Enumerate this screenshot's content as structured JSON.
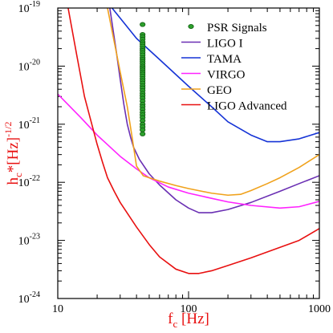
{
  "chart_data": {
    "type": "line",
    "title": "",
    "xlabel_main": "f",
    "xlabel_sub": "c",
    "xlabel_unit": " [Hz]",
    "ylabel_main": "h",
    "ylabel_sub": "c",
    "ylabel_unit": "*[Hz]",
    "ylabel_exp": "-1/2",
    "xscale": "log",
    "yscale": "log",
    "xlim": [
      10,
      1000
    ],
    "ylim": [
      1e-24,
      1e-19
    ],
    "grid": false,
    "legend_position": "top-right",
    "x_ticks": [
      {
        "value": 10,
        "label": "10"
      },
      {
        "value": 100,
        "label": "100"
      },
      {
        "value": 1000,
        "label": "1000"
      }
    ],
    "y_ticks": [
      {
        "value": 1e-19,
        "base": "10",
        "exp": "-19"
      },
      {
        "value": 1e-20,
        "base": "10",
        "exp": "-20"
      },
      {
        "value": 1e-21,
        "base": "10",
        "exp": "-21"
      },
      {
        "value": 1e-22,
        "base": "10",
        "exp": "-22"
      },
      {
        "value": 1e-23,
        "base": "10",
        "exp": "-23"
      },
      {
        "value": 1e-24,
        "base": "10",
        "exp": "-24"
      }
    ],
    "series": [
      {
        "name": "LIGO I",
        "kind": "line",
        "color": "#6a2fb3",
        "x": [
          25,
          28,
          30,
          32,
          34,
          36,
          38,
          42,
          50,
          60,
          80,
          100,
          120,
          150,
          200,
          300,
          500,
          700,
          1000
        ],
        "y": [
          1e-19,
          1.8e-20,
          6e-21,
          2.2e-21,
          1e-21,
          6e-22,
          4e-22,
          2.5e-22,
          1.4e-22,
          9e-23,
          5e-23,
          3.6e-23,
          3e-23,
          3e-23,
          3.4e-23,
          4.5e-23,
          7e-23,
          9.5e-23,
          1.3e-22
        ]
      },
      {
        "name": "TAMA",
        "kind": "line",
        "color": "#1533d6",
        "x": [
          26,
          40,
          60,
          100,
          150,
          200,
          300,
          400,
          500,
          700,
          1000
        ],
        "y": [
          1e-19,
          3e-20,
          1.3e-20,
          4.5e-21,
          2e-21,
          1.1e-21,
          6.5e-22,
          5e-22,
          5e-22,
          5.6e-22,
          7.2e-22
        ]
      },
      {
        "name": "VIRGO",
        "kind": "line",
        "color": "#ff22ff",
        "x": [
          10,
          15,
          20,
          30,
          40,
          50,
          70,
          100,
          150,
          200,
          300,
          500,
          700,
          1000
        ],
        "y": [
          3.3e-21,
          1.3e-21,
          6.5e-22,
          2.8e-22,
          1.7e-22,
          1.2e-22,
          8.3e-23,
          6.5e-23,
          5.3e-23,
          4.6e-23,
          4e-23,
          3.6e-23,
          3.8e-23,
          4.7e-23
        ]
      },
      {
        "name": "GEO",
        "kind": "line",
        "color": "#f0a21c",
        "x": [
          24,
          30,
          34,
          37,
          40,
          45,
          50,
          60,
          80,
          100,
          150,
          200,
          250,
          300,
          400,
          500,
          700,
          1000
        ],
        "y": [
          1e-19,
          8e-21,
          2e-21,
          6e-22,
          1.9e-22,
          1.3e-22,
          1.2e-22,
          1.05e-22,
          8.8e-23,
          7.8e-23,
          6.5e-23,
          6e-23,
          6.2e-23,
          7.2e-23,
          9.5e-23,
          1.2e-22,
          1.8e-22,
          3e-22
        ]
      },
      {
        "name": "LIGO Advanced",
        "kind": "line",
        "color": "#e81010",
        "x": [
          12,
          14,
          16,
          18,
          20,
          22,
          24,
          27,
          30,
          40,
          50,
          60,
          80,
          100,
          120,
          150,
          200,
          300,
          500,
          700,
          1000
        ],
        "y": [
          1e-19,
          1.5e-20,
          3e-21,
          1.1e-21,
          4.5e-22,
          2.2e-22,
          1.2e-22,
          7e-23,
          4.5e-23,
          1.7e-23,
          8.5e-24,
          5.2e-24,
          3.2e-24,
          2.7e-24,
          2.7e-24,
          3e-24,
          3.7e-24,
          5e-24,
          7.6e-24,
          1e-23,
          1.6e-23
        ]
      },
      {
        "name": "PSR Signals",
        "kind": "scatter",
        "color": "#2ca02c",
        "x": [
          44.5,
          44.5,
          44.5,
          44.5,
          44.5,
          44.5,
          44.5,
          44.5,
          44.5,
          44.5,
          44.5,
          44.5,
          44.5,
          44.5,
          44.5,
          44.5,
          44.5,
          44.5,
          44.5,
          44.5,
          44.5,
          44.5,
          44.5,
          44.5,
          44.5,
          44.5,
          44.5,
          44.5,
          44.5,
          44.5,
          44.5,
          44.5,
          44.5,
          44.5,
          44.5,
          44.5,
          44.5,
          44.5,
          44.5,
          44.5,
          44.5,
          44.5
        ],
        "y": [
          5.2e-20,
          3.5e-20,
          3.2e-20,
          2.9e-20,
          2.6e-20,
          2.4e-20,
          2.2e-20,
          2e-20,
          1.85e-20,
          1.7e-20,
          1.55e-20,
          1.4e-20,
          1.3e-20,
          1.2e-20,
          1.1e-20,
          1e-20,
          9.3e-21,
          8.6e-21,
          7.9e-21,
          7.3e-21,
          6.7e-21,
          6.1e-21,
          5.6e-21,
          5.1e-21,
          4.6e-21,
          4.2e-21,
          3.8e-21,
          3.4e-21,
          3.1e-21,
          2.8e-21,
          2.5e-21,
          2.2e-21,
          2e-21,
          1.8e-21,
          1.6e-21,
          1.45e-21,
          1.3e-21,
          1.15e-21,
          1e-21,
          9e-22,
          8e-22,
          6.8e-22
        ]
      }
    ],
    "legend": [
      {
        "label": "PSR Signals",
        "kind": "marker",
        "color": "#2ca02c"
      },
      {
        "label": "LIGO I",
        "kind": "line",
        "color": "#6a2fb3"
      },
      {
        "label": "TAMA",
        "kind": "line",
        "color": "#1533d6"
      },
      {
        "label": "VIRGO",
        "kind": "line",
        "color": "#ff22ff"
      },
      {
        "label": "GEO",
        "kind": "line",
        "color": "#f0a21c"
      },
      {
        "label": "LIGO Advanced",
        "kind": "line",
        "color": "#e81010"
      }
    ],
    "label_color": "#e81010"
  }
}
